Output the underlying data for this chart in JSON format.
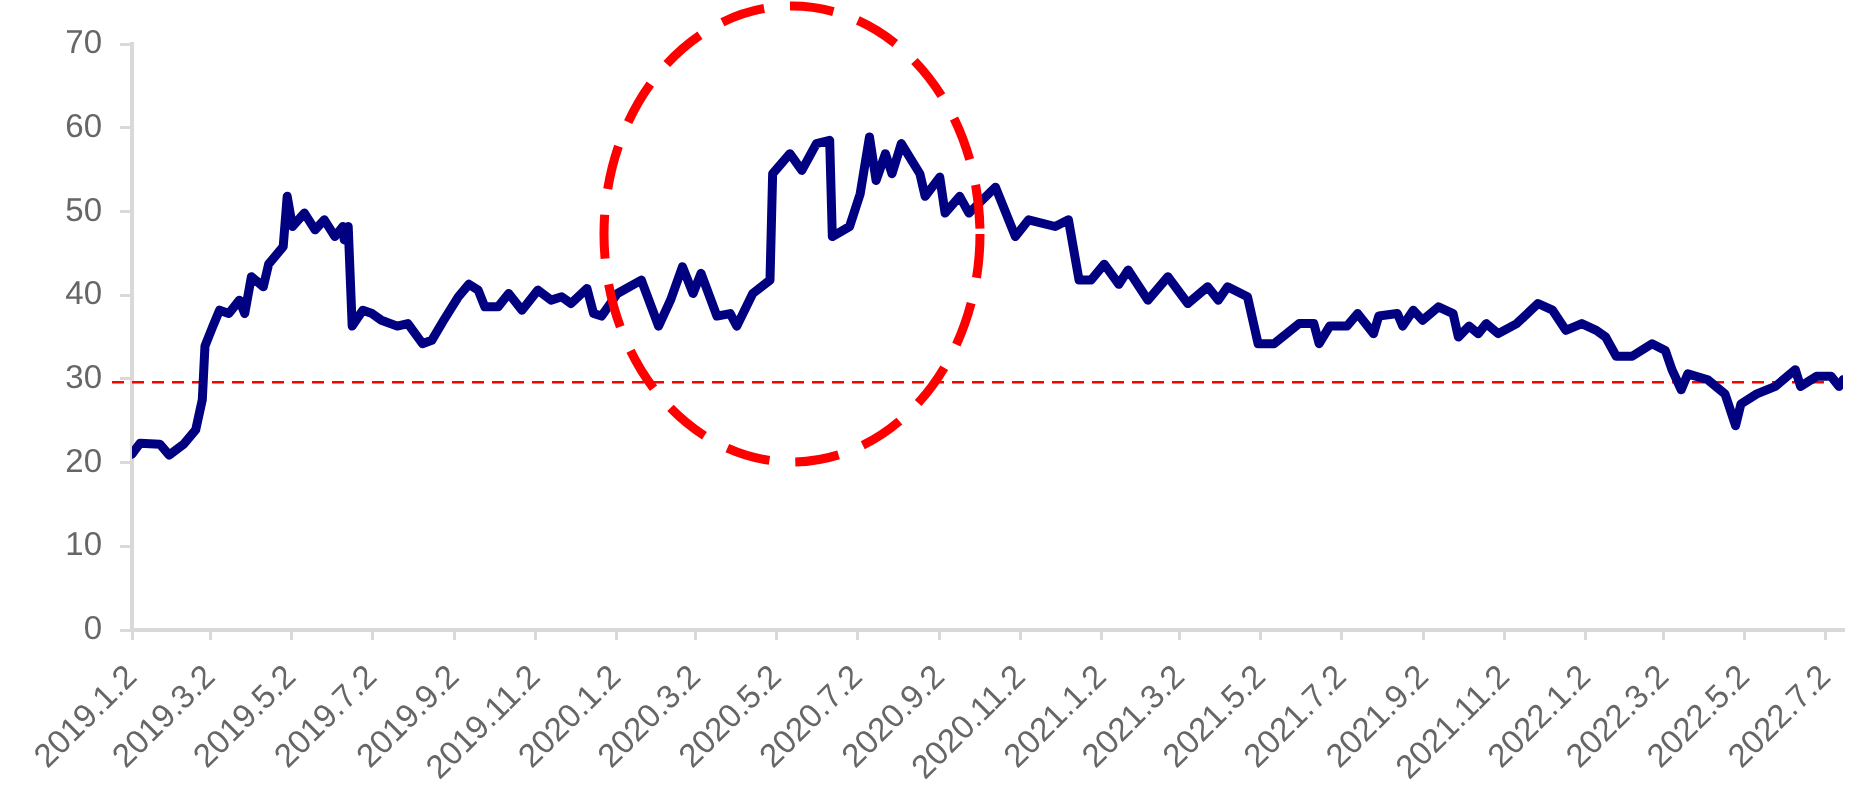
{
  "chart_data": {
    "type": "line",
    "x": [
      "2019-01-02",
      "2019-01-08",
      "2019-01-23",
      "2019-01-30",
      "2019-02-10",
      "2019-02-19",
      "2019-02-24",
      "2019-02-26",
      "2019-03-04",
      "2019-03-09",
      "2019-03-16",
      "2019-03-24",
      "2019-03-28",
      "2019-04-02",
      "2019-04-11",
      "2019-04-15",
      "2019-04-26",
      "2019-04-29",
      "2019-05-03",
      "2019-05-12",
      "2019-05-20",
      "2019-05-27",
      "2019-06-04",
      "2019-06-10",
      "2019-06-11",
      "2019-06-14",
      "2019-06-17",
      "2019-06-25",
      "2019-07-02",
      "2019-07-09",
      "2019-07-21",
      "2019-07-29",
      "2019-08-09",
      "2019-08-16",
      "2019-08-25",
      "2019-09-05",
      "2019-09-13",
      "2019-09-20",
      "2019-09-25",
      "2019-10-05",
      "2019-10-13",
      "2019-10-23",
      "2019-11-04",
      "2019-11-14",
      "2019-11-22",
      "2019-11-29",
      "2019-12-11",
      "2019-12-16",
      "2019-12-22",
      "2020-01-03",
      "2020-01-21",
      "2020-02-03",
      "2020-02-12",
      "2020-02-21",
      "2020-02-29",
      "2020-03-06",
      "2020-03-18",
      "2020-03-28",
      "2020-04-02",
      "2020-04-14",
      "2020-04-27",
      "2020-04-29",
      "2020-05-12",
      "2020-05-21",
      "2020-06-01",
      "2020-06-11",
      "2020-06-13",
      "2020-06-26",
      "2020-07-04",
      "2020-07-11",
      "2020-07-16",
      "2020-07-23",
      "2020-07-28",
      "2020-08-04",
      "2020-08-18",
      "2020-08-22",
      "2020-09-02",
      "2020-09-06",
      "2020-09-17",
      "2020-09-24",
      "2020-10-14",
      "2020-10-29",
      "2020-11-08",
      "2020-11-28",
      "2020-12-08",
      "2020-12-16",
      "2020-12-25",
      "2021-01-04",
      "2021-01-15",
      "2021-01-22",
      "2021-02-06",
      "2021-02-21",
      "2021-03-08",
      "2021-03-23",
      "2021-03-31",
      "2021-04-07",
      "2021-04-22",
      "2021-04-30",
      "2021-05-12",
      "2021-05-31",
      "2021-06-11",
      "2021-06-15",
      "2021-06-23",
      "2021-07-06",
      "2021-07-14",
      "2021-07-26",
      "2021-07-30",
      "2021-08-13",
      "2021-08-17",
      "2021-08-25",
      "2021-09-01",
      "2021-09-13",
      "2021-09-24",
      "2021-09-28",
      "2021-10-06",
      "2021-10-13",
      "2021-10-19",
      "2021-10-28",
      "2021-11-11",
      "2021-11-27",
      "2021-12-08",
      "2021-12-18",
      "2021-12-30",
      "2022-01-10",
      "2022-01-17",
      "2022-01-25",
      "2022-02-06",
      "2022-02-21",
      "2022-03-03",
      "2022-03-08",
      "2022-03-15",
      "2022-03-20",
      "2022-04-04",
      "2022-04-17",
      "2022-04-25",
      "2022-04-29",
      "2022-05-11",
      "2022-05-25",
      "2022-06-09",
      "2022-06-13",
      "2022-06-25",
      "2022-07-06",
      "2022-07-12",
      "2022-07-15"
    ],
    "values": [
      21.0,
      22.3,
      22.2,
      20.9,
      22.2,
      23.9,
      27.5,
      33.9,
      36.3,
      38.2,
      37.8,
      39.4,
      37.8,
      42.2,
      41.0,
      43.7,
      45.8,
      51.8,
      48.2,
      49.8,
      47.8,
      49.0,
      47.0,
      48.2,
      46.6,
      48.2,
      36.3,
      38.2,
      37.8,
      37.0,
      36.3,
      36.6,
      34.2,
      34.6,
      37.0,
      39.8,
      41.3,
      40.6,
      38.6,
      38.6,
      40.2,
      38.2,
      40.6,
      39.4,
      39.8,
      39.0,
      40.8,
      37.8,
      37.5,
      40.2,
      41.8,
      36.3,
      39.4,
      43.4,
      40.2,
      42.6,
      37.5,
      37.8,
      36.3,
      40.2,
      41.8,
      54.5,
      56.9,
      54.9,
      58.1,
      58.5,
      47.0,
      48.2,
      52.1,
      58.9,
      53.7,
      56.9,
      54.5,
      58.1,
      54.5,
      51.8,
      54.1,
      49.8,
      51.8,
      49.8,
      52.9,
      47.0,
      49.0,
      48.2,
      49.0,
      41.8,
      41.8,
      43.7,
      41.3,
      43.0,
      39.4,
      42.2,
      39.0,
      41.0,
      39.4,
      41.0,
      39.8,
      34.2,
      34.2,
      36.6,
      36.6,
      34.2,
      36.3,
      36.3,
      37.8,
      35.4,
      37.5,
      37.8,
      36.3,
      38.2,
      37.0,
      38.6,
      37.8,
      35.0,
      36.3,
      35.4,
      36.6,
      35.4,
      36.6,
      39.0,
      38.2,
      35.8,
      36.6,
      35.8,
      35.0,
      32.7,
      32.7,
      34.2,
      33.4,
      31.1,
      28.7,
      30.6,
      29.9,
      28.2,
      24.4,
      27.0,
      28.2,
      29.1,
      31.1,
      29.1,
      30.3,
      30.3,
      29.1,
      29.9
    ],
    "color": "#000080",
    "marker": "none",
    "line_style": "solid",
    "xlim": [
      "2019-01-02",
      "2022-07-15"
    ],
    "xticks": [
      {
        "value": "2019-01-02",
        "label": "2019.1.2"
      },
      {
        "value": "2019-03-02",
        "label": "2019.3.2"
      },
      {
        "value": "2019-05-02",
        "label": "2019.5.2"
      },
      {
        "value": "2019-07-02",
        "label": "2019.7.2"
      },
      {
        "value": "2019-09-02",
        "label": "2019.9.2"
      },
      {
        "value": "2019-11-02",
        "label": "2019.11.2"
      },
      {
        "value": "2020-01-02",
        "label": "2020.1.2"
      },
      {
        "value": "2020-03-02",
        "label": "2020.3.2"
      },
      {
        "value": "2020-05-02",
        "label": "2020.5.2"
      },
      {
        "value": "2020-07-02",
        "label": "2020.7.2"
      },
      {
        "value": "2020-09-02",
        "label": "2020.9.2"
      },
      {
        "value": "2020-11-02",
        "label": "2020.11.2"
      },
      {
        "value": "2021-01-02",
        "label": "2021.1.2"
      },
      {
        "value": "2021-03-02",
        "label": "2021.3.2"
      },
      {
        "value": "2021-05-02",
        "label": "2021.5.2"
      },
      {
        "value": "2021-07-02",
        "label": "2021.7.2"
      },
      {
        "value": "2021-09-02",
        "label": "2021.9.2"
      },
      {
        "value": "2021-11-02",
        "label": "2021.11.2"
      },
      {
        "value": "2022-01-02",
        "label": "2022.1.2"
      },
      {
        "value": "2022-03-02",
        "label": "2022.3.2"
      },
      {
        "value": "2022-05-02",
        "label": "2022.5.2"
      },
      {
        "value": "2022-07-02",
        "label": "2022.7.2"
      }
    ],
    "ylim": [
      0,
      70
    ],
    "yticks": [
      0,
      10,
      20,
      30,
      40,
      50,
      60,
      70
    ],
    "ref_lines": [
      {
        "axis": "y",
        "value": 29.6,
        "color": "#ff0000",
        "line_style": "dashed"
      }
    ]
  }
}
